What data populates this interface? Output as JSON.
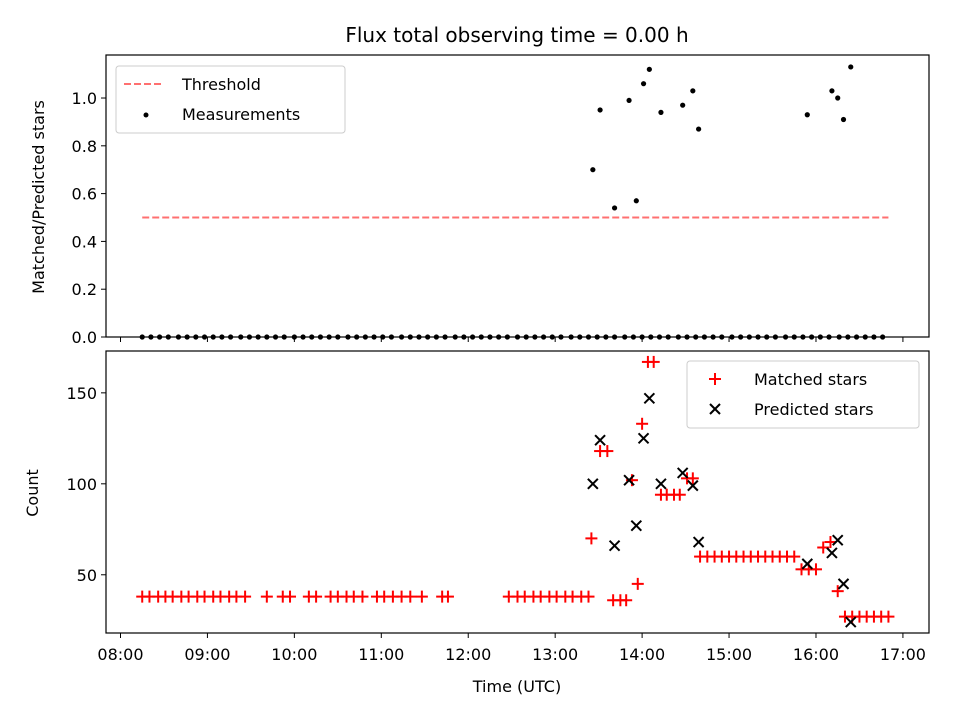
{
  "chart_data": [
    {
      "type": "scatter",
      "title": "Flux total observing time = 0.00 h",
      "xlabel": "",
      "ylabel": "Matched/Predicted stars",
      "xlim": [
        "07:50",
        "17:18"
      ],
      "ylim": [
        0,
        1.18
      ],
      "yticks": [
        "0.0",
        "0.2",
        "0.4",
        "0.6",
        "0.8",
        "1.0"
      ],
      "legend": {
        "position": "top-left",
        "entries": [
          "Threshold",
          "Measurements"
        ]
      },
      "threshold": {
        "name": "Threshold",
        "y": 0.5,
        "x_start": "08:15",
        "x_end": "16:50",
        "color": "#ff7070"
      },
      "series": [
        {
          "name": "Measurements",
          "color": "#000000",
          "points": [
            [
              "08:15",
              0
            ],
            [
              "08:21",
              0
            ],
            [
              "08:27",
              0
            ],
            [
              "08:33",
              0
            ],
            [
              "08:40",
              0
            ],
            [
              "08:46",
              0
            ],
            [
              "08:52",
              0
            ],
            [
              "08:58",
              0
            ],
            [
              "09:04",
              0
            ],
            [
              "09:10",
              0
            ],
            [
              "09:16",
              0
            ],
            [
              "09:23",
              0
            ],
            [
              "09:29",
              0
            ],
            [
              "09:35",
              0
            ],
            [
              "09:41",
              0
            ],
            [
              "09:47",
              0
            ],
            [
              "09:53",
              0
            ],
            [
              "10:00",
              0
            ],
            [
              "10:06",
              0
            ],
            [
              "10:12",
              0
            ],
            [
              "10:18",
              0
            ],
            [
              "10:24",
              0
            ],
            [
              "10:30",
              0
            ],
            [
              "10:37",
              0
            ],
            [
              "10:43",
              0
            ],
            [
              "10:49",
              0
            ],
            [
              "10:55",
              0
            ],
            [
              "11:01",
              0
            ],
            [
              "11:07",
              0
            ],
            [
              "11:14",
              0
            ],
            [
              "11:20",
              0
            ],
            [
              "11:26",
              0
            ],
            [
              "11:32",
              0
            ],
            [
              "11:38",
              0
            ],
            [
              "11:44",
              0
            ],
            [
              "11:51",
              0
            ],
            [
              "11:57",
              0
            ],
            [
              "12:03",
              0
            ],
            [
              "12:09",
              0
            ],
            [
              "12:15",
              0
            ],
            [
              "12:21",
              0
            ],
            [
              "12:27",
              0
            ],
            [
              "12:34",
              0
            ],
            [
              "12:40",
              0
            ],
            [
              "12:46",
              0
            ],
            [
              "12:52",
              0
            ],
            [
              "12:58",
              0
            ],
            [
              "13:04",
              0
            ],
            [
              "13:11",
              0
            ],
            [
              "13:17",
              0
            ],
            [
              "13:23",
              0
            ],
            [
              "13:29",
              0
            ],
            [
              "13:35",
              0
            ],
            [
              "13:41",
              0
            ],
            [
              "13:48",
              0
            ],
            [
              "13:54",
              0
            ],
            [
              "14:00",
              0
            ],
            [
              "14:06",
              0
            ],
            [
              "14:12",
              0
            ],
            [
              "14:18",
              0
            ],
            [
              "14:25",
              0
            ],
            [
              "14:31",
              0
            ],
            [
              "14:37",
              0
            ],
            [
              "14:43",
              0
            ],
            [
              "14:49",
              0
            ],
            [
              "14:55",
              0
            ],
            [
              "15:02",
              0
            ],
            [
              "15:08",
              0
            ],
            [
              "15:14",
              0
            ],
            [
              "15:20",
              0
            ],
            [
              "15:26",
              0
            ],
            [
              "15:32",
              0
            ],
            [
              "15:39",
              0
            ],
            [
              "15:45",
              0
            ],
            [
              "15:51",
              0
            ],
            [
              "15:57",
              0
            ],
            [
              "16:03",
              0
            ],
            [
              "16:09",
              0
            ],
            [
              "16:16",
              0
            ],
            [
              "16:22",
              0
            ],
            [
              "16:28",
              0
            ],
            [
              "16:34",
              0
            ],
            [
              "16:40",
              0
            ],
            [
              "16:46",
              0
            ],
            [
              "13:26",
              0.7
            ],
            [
              "13:31",
              0.95
            ],
            [
              "13:41",
              0.54
            ],
            [
              "13:51",
              0.99
            ],
            [
              "13:56",
              0.57
            ],
            [
              "14:01",
              1.06
            ],
            [
              "14:05",
              1.12
            ],
            [
              "14:13",
              0.94
            ],
            [
              "14:28",
              0.97
            ],
            [
              "14:35",
              1.03
            ],
            [
              "14:39",
              0.87
            ],
            [
              "15:54",
              0.93
            ],
            [
              "16:11",
              1.03
            ],
            [
              "16:15",
              1.0
            ],
            [
              "16:19",
              0.91
            ],
            [
              "16:24",
              1.13
            ]
          ]
        }
      ]
    },
    {
      "type": "scatter",
      "title": "",
      "xlabel": "Time (UTC)",
      "ylabel": "Count",
      "xlim": [
        "07:50",
        "17:18"
      ],
      "ylim": [
        18,
        173
      ],
      "yticks": [
        "50",
        "100",
        "150"
      ],
      "xticks": [
        "08:00",
        "09:00",
        "10:00",
        "11:00",
        "12:00",
        "13:00",
        "14:00",
        "15:00",
        "16:00",
        "17:00"
      ],
      "legend": {
        "position": "top-right",
        "entries": [
          "Matched stars",
          "Predicted stars"
        ]
      },
      "series": [
        {
          "name": "Matched stars",
          "color": "#ff0000",
          "marker": "+",
          "points": [
            [
              "08:15",
              38
            ],
            [
              "08:20",
              38
            ],
            [
              "08:26",
              38
            ],
            [
              "08:31",
              38
            ],
            [
              "08:36",
              38
            ],
            [
              "08:42",
              38
            ],
            [
              "08:47",
              38
            ],
            [
              "08:53",
              38
            ],
            [
              "08:58",
              38
            ],
            [
              "09:04",
              38
            ],
            [
              "09:09",
              38
            ],
            [
              "09:15",
              38
            ],
            [
              "09:20",
              38
            ],
            [
              "09:26",
              38
            ],
            [
              "09:41",
              38
            ],
            [
              "09:52",
              38
            ],
            [
              "09:57",
              38
            ],
            [
              "10:10",
              38
            ],
            [
              "10:15",
              38
            ],
            [
              "10:25",
              38
            ],
            [
              "10:30",
              38
            ],
            [
              "10:36",
              38
            ],
            [
              "10:41",
              38
            ],
            [
              "10:47",
              38
            ],
            [
              "10:57",
              38
            ],
            [
              "11:02",
              38
            ],
            [
              "11:08",
              38
            ],
            [
              "11:14",
              38
            ],
            [
              "11:20",
              38
            ],
            [
              "11:28",
              38
            ],
            [
              "11:42",
              38
            ],
            [
              "11:46",
              38
            ],
            [
              "12:28",
              38
            ],
            [
              "12:34",
              38
            ],
            [
              "12:39",
              38
            ],
            [
              "12:45",
              38
            ],
            [
              "12:50",
              38
            ],
            [
              "12:56",
              38
            ],
            [
              "13:01",
              38
            ],
            [
              "13:07",
              38
            ],
            [
              "13:12",
              38
            ],
            [
              "13:18",
              38
            ],
            [
              "13:23",
              38
            ],
            [
              "13:25",
              70
            ],
            [
              "13:31",
              118
            ],
            [
              "13:36",
              118
            ],
            [
              "13:40",
              36
            ],
            [
              "13:45",
              36
            ],
            [
              "13:49",
              36
            ],
            [
              "13:53",
              102
            ],
            [
              "13:57",
              45
            ],
            [
              "14:00",
              133
            ],
            [
              "14:04",
              167
            ],
            [
              "14:08",
              167
            ],
            [
              "14:13",
              94
            ],
            [
              "14:17",
              94
            ],
            [
              "14:22",
              94
            ],
            [
              "14:26",
              94
            ],
            [
              "14:31",
              103
            ],
            [
              "14:35",
              103
            ],
            [
              "14:40",
              60
            ],
            [
              "14:45",
              60
            ],
            [
              "14:50",
              60
            ],
            [
              "14:55",
              60
            ],
            [
              "15:00",
              60
            ],
            [
              "15:05",
              60
            ],
            [
              "15:10",
              60
            ],
            [
              "15:15",
              60
            ],
            [
              "15:20",
              60
            ],
            [
              "15:25",
              60
            ],
            [
              "15:30",
              60
            ],
            [
              "15:35",
              60
            ],
            [
              "15:40",
              60
            ],
            [
              "15:45",
              60
            ],
            [
              "15:50",
              53
            ],
            [
              "15:55",
              53
            ],
            [
              "16:00",
              53
            ],
            [
              "16:05",
              65
            ],
            [
              "16:10",
              68
            ],
            [
              "16:15",
              41
            ],
            [
              "16:20",
              27
            ],
            [
              "16:25",
              27
            ],
            [
              "16:30",
              27
            ],
            [
              "16:35",
              27
            ],
            [
              "16:40",
              27
            ],
            [
              "16:45",
              27
            ],
            [
              "16:50",
              27
            ]
          ]
        },
        {
          "name": "Predicted stars",
          "color": "#000000",
          "marker": "x",
          "points": [
            [
              "13:26",
              100
            ],
            [
              "13:31",
              124
            ],
            [
              "13:41",
              66
            ],
            [
              "13:51",
              102
            ],
            [
              "13:56",
              77
            ],
            [
              "14:01",
              125
            ],
            [
              "14:05",
              147
            ],
            [
              "14:13",
              100
            ],
            [
              "14:28",
              106
            ],
            [
              "14:35",
              99
            ],
            [
              "14:39",
              68
            ],
            [
              "15:54",
              56
            ],
            [
              "16:11",
              62
            ],
            [
              "16:15",
              69
            ],
            [
              "16:19",
              45
            ],
            [
              "16:24",
              24
            ]
          ]
        }
      ]
    }
  ]
}
